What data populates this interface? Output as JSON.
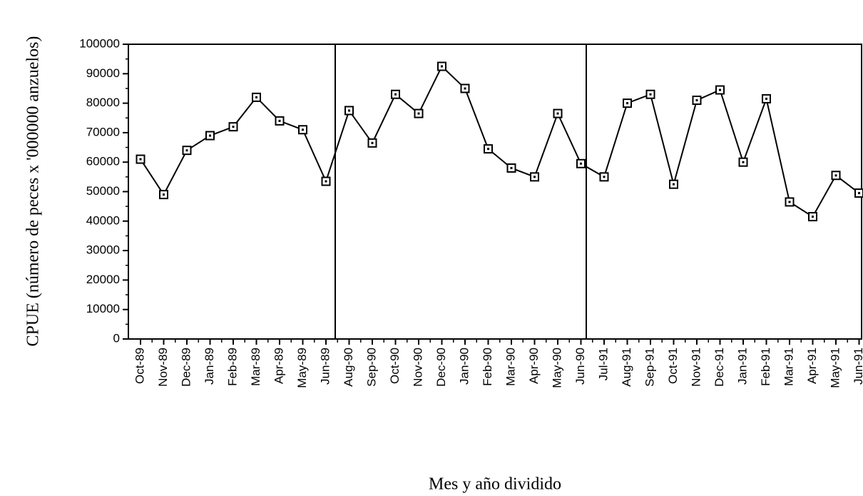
{
  "chart_data": {
    "type": "line",
    "y_label": "CPUE (número de peces x '000000 anzuelos)",
    "x_label": "Mes y año dividido",
    "categories": [
      "Oct-89",
      "Nov-89",
      "Dec-89",
      "Jan-89",
      "Feb-89",
      "Mar-89",
      "Apr-89",
      "May-89",
      "Jun-89",
      "Aug-90",
      "Sep-90",
      "Oct-90",
      "Nov-90",
      "Dec-90",
      "Jan-90",
      "Feb-90",
      "Mar-90",
      "Apr-90",
      "May-90",
      "Jun-90",
      "Jul-91",
      "Aug-91",
      "Sep-91",
      "Oct-91",
      "Nov-91",
      "Dec-91",
      "Jan-91",
      "Feb-91",
      "Mar-91",
      "Apr-91",
      "May-91",
      "Jun-91"
    ],
    "values": [
      61000,
      49000,
      64000,
      69000,
      72000,
      82000,
      74000,
      71000,
      53500,
      77500,
      66500,
      83000,
      76500,
      92500,
      85000,
      64500,
      58000,
      55000,
      76500,
      59500,
      55000,
      80000,
      83000,
      52500,
      81000,
      84500,
      60000,
      81500,
      46500,
      41500,
      55500,
      49500
    ],
    "color": "#000000",
    "ylim": [
      0,
      100000
    ],
    "yticks": [
      0,
      10000,
      20000,
      30000,
      40000,
      50000,
      60000,
      70000,
      80000,
      90000,
      100000
    ],
    "grid": false
  }
}
